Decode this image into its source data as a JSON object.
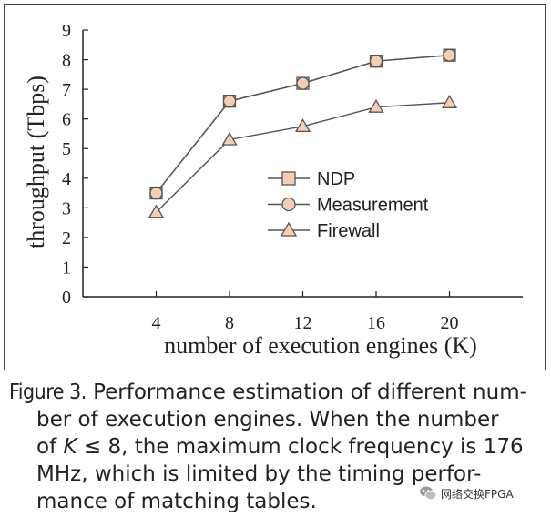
{
  "chart_data": {
    "type": "line",
    "title": "",
    "xlabel": "number of execution engines (K)",
    "ylabel": "throughput (Tbps)",
    "x": [
      4,
      8,
      12,
      16,
      20
    ],
    "xlim": [
      0,
      24
    ],
    "ylim": [
      0,
      9
    ],
    "xticks": [
      "4",
      "8",
      "12",
      "16",
      "20"
    ],
    "yticks": [
      "0",
      "1",
      "2",
      "3",
      "4",
      "5",
      "6",
      "7",
      "8",
      "9"
    ],
    "grid": false,
    "legend_position": "center-right",
    "series": [
      {
        "name": "NDP",
        "marker": "square",
        "values": [
          3.5,
          6.6,
          7.2,
          7.95,
          8.15
        ]
      },
      {
        "name": "Measurement",
        "marker": "circle",
        "values": [
          3.5,
          6.6,
          7.2,
          7.95,
          8.15
        ]
      },
      {
        "name": "Firewall",
        "marker": "triangle",
        "values": [
          2.85,
          5.3,
          5.75,
          6.4,
          6.55
        ]
      }
    ],
    "colors": {
      "marker_fill": "#f7cdb4",
      "marker_stroke": "#555555",
      "line": "#555555",
      "axis": "#222222"
    }
  },
  "caption": {
    "label": "Figure 3.",
    "line1": "Performance estimation of different num-",
    "line2": "ber of execution engines. When the number",
    "line3_pre": "of ",
    "line3_k": "K",
    "line3_post": " ≤ 8, the maximum clock frequency is 176",
    "line4": "MHz, which is limited by the timing perfor-",
    "line5": "mance of matching tables."
  },
  "watermark": {
    "icon": "wechat-icon",
    "text": "网络交换FPGA"
  }
}
